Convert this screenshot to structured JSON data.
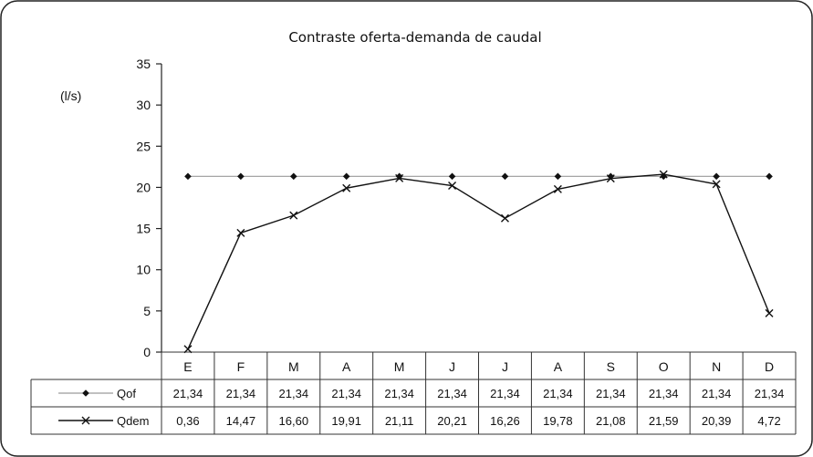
{
  "chart_data": {
    "type": "line",
    "title": "Contraste oferta-demanda de caudal",
    "ylabel": "(l/s)",
    "xlabel": "",
    "ylim": [
      0,
      35
    ],
    "yticks": [
      "0",
      "5",
      "10",
      "15",
      "20",
      "25",
      "30",
      "35"
    ],
    "grid": false,
    "legend": "data table rows",
    "categories": [
      "E",
      "F",
      "M",
      "A",
      "M",
      "J",
      "J",
      "A",
      "S",
      "O",
      "N",
      "D"
    ],
    "series": [
      {
        "name": "Qof",
        "marker": "diamond",
        "color": "#111111",
        "values": [
          21.34,
          21.34,
          21.34,
          21.34,
          21.34,
          21.34,
          21.34,
          21.34,
          21.34,
          21.34,
          21.34,
          21.34
        ],
        "table": [
          "21,34",
          "21,34",
          "21,34",
          "21,34",
          "21,34",
          "21,34",
          "21,34",
          "21,34",
          "21,34",
          "21,34",
          "21,34",
          "21,34"
        ]
      },
      {
        "name": "Qdem",
        "marker": "x",
        "color": "#111111",
        "values": [
          0.36,
          14.47,
          16.6,
          19.91,
          21.11,
          20.21,
          16.26,
          19.78,
          21.08,
          21.59,
          20.39,
          4.72
        ],
        "table": [
          "0,36",
          "14,47",
          "16,60",
          "19,91",
          "21,11",
          "20,21",
          "16,26",
          "19,78",
          "21,08",
          "21,59",
          "20,39",
          "4,72"
        ]
      }
    ]
  }
}
